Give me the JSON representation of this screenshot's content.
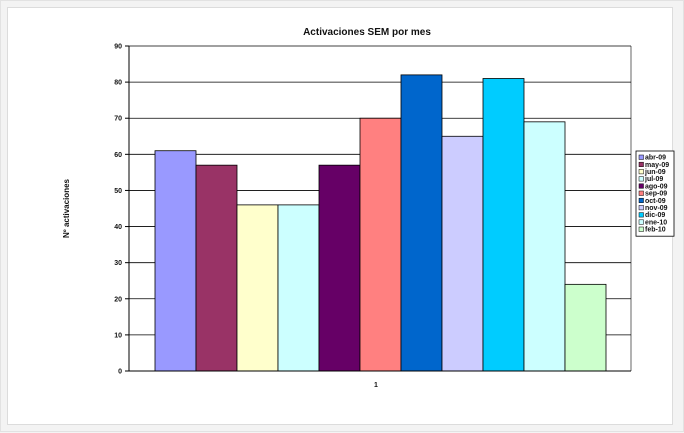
{
  "chart_data": {
    "type": "bar",
    "title": "Activaciones SEM por mes",
    "ylabel": "Nº activaciones",
    "xlabel": "",
    "categories": [
      "1"
    ],
    "ylim": [
      0,
      90
    ],
    "yticks": [
      0,
      10,
      20,
      30,
      40,
      50,
      60,
      70,
      80,
      90
    ],
    "grid": true,
    "legend_position": "right",
    "series": [
      {
        "name": "abr-09",
        "values": [
          61
        ],
        "color": "#9999ff"
      },
      {
        "name": "may-09",
        "values": [
          57
        ],
        "color": "#993366"
      },
      {
        "name": "jun-09",
        "values": [
          46
        ],
        "color": "#ffffcc"
      },
      {
        "name": "jul-09",
        "values": [
          46
        ],
        "color": "#ccffff"
      },
      {
        "name": "ago-09",
        "values": [
          57
        ],
        "color": "#660066"
      },
      {
        "name": "sep-09",
        "values": [
          70
        ],
        "color": "#ff8080"
      },
      {
        "name": "oct-09",
        "values": [
          82
        ],
        "color": "#0066cc"
      },
      {
        "name": "nov-09",
        "values": [
          65
        ],
        "color": "#ccccff"
      },
      {
        "name": "dic-09",
        "values": [
          81
        ],
        "color": "#00ccff"
      },
      {
        "name": "ene-10",
        "values": [
          69
        ],
        "color": "#ccffff"
      },
      {
        "name": "feb-10",
        "values": [
          24
        ],
        "color": "#ccffcc"
      }
    ]
  }
}
